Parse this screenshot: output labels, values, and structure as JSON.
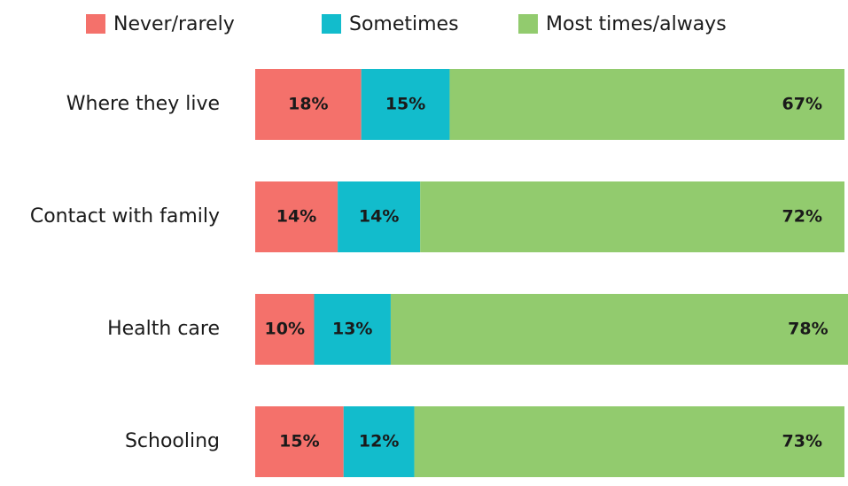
{
  "chart_data": {
    "type": "stacked-bar-horizontal",
    "categories": [
      "Where they live",
      "Contact with family",
      "Health care",
      "Schooling"
    ],
    "xlim": [
      0,
      100
    ],
    "legend": "top",
    "series": [
      {
        "name": "Never/rarely",
        "color": "#f4716b",
        "values": [
          18,
          14,
          10,
          15
        ],
        "value_labels": [
          "18%",
          "14%",
          "10%",
          "15%"
        ]
      },
      {
        "name": "Sometimes",
        "color": "#12bccc",
        "values": [
          15,
          14,
          13,
          12
        ],
        "value_labels": [
          "15%",
          "14%",
          "13%",
          "12%"
        ]
      },
      {
        "name": "Most times/always",
        "color": "#92cb6e",
        "values": [
          67,
          72,
          78,
          73
        ],
        "value_labels": [
          "67%",
          "72%",
          "78%",
          "73%"
        ]
      }
    ]
  }
}
